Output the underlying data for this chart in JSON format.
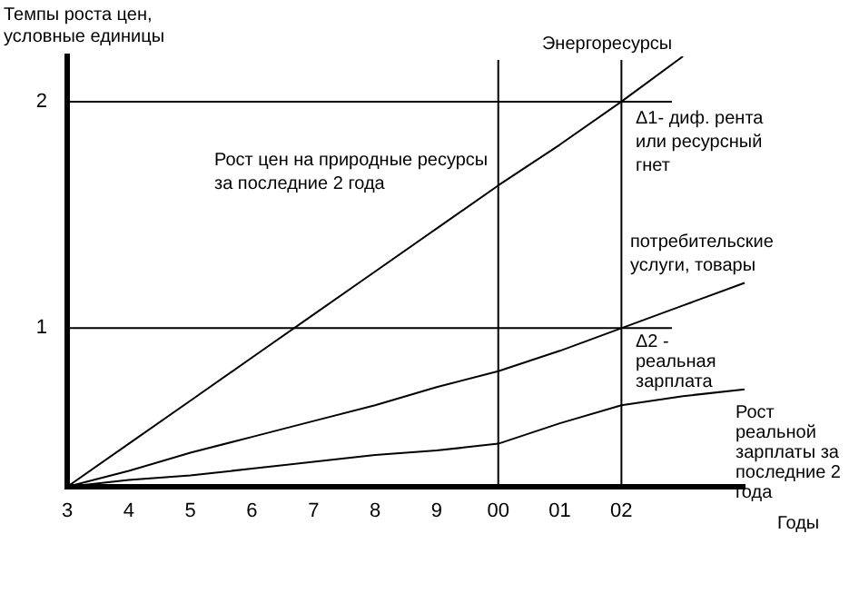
{
  "chart_data": {
    "type": "line",
    "ylabel": "Темпы роста цен, условные единицы",
    "xlabel": "Годы",
    "categories": [
      "3",
      "4",
      "5",
      "6",
      "7",
      "8",
      "9",
      "00",
      "01",
      "02",
      null,
      null
    ],
    "ylim": [
      0.3,
      2.2
    ],
    "yticks": [
      1,
      2
    ],
    "grid": false,
    "legend": false,
    "marker": "none",
    "line_style": "solid",
    "series": [
      {
        "name": "Энергоресурсы",
        "color": "#000000",
        "values": [
          0.3,
          0.49,
          0.68,
          0.87,
          1.06,
          1.25,
          1.44,
          1.63,
          1.81,
          2.0,
          2.2,
          null
        ]
      },
      {
        "name": "потребительские услуги, товары",
        "color": "#000000",
        "values": [
          0.3,
          0.37,
          0.45,
          0.52,
          0.59,
          0.66,
          0.74,
          0.81,
          0.9,
          1.0,
          1.1,
          1.2
        ]
      },
      {
        "color": "#000000",
        "values": [
          0.3,
          0.33,
          0.35,
          0.38,
          0.41,
          0.44,
          0.46,
          0.49,
          0.58,
          0.66,
          0.7,
          0.73
        ]
      }
    ],
    "ref_lines": [
      {
        "axis": "y",
        "value": 1,
        "label": null
      },
      {
        "axis": "y",
        "value": 2,
        "label": null
      },
      {
        "axis": "x",
        "value": "00",
        "label": null
      },
      {
        "axis": "x",
        "value": "02",
        "label": null
      }
    ],
    "annotations": [
      "Рост цен на природные ресурсы за последние 2 года",
      "Δ1- диф. рента или ресурсный гнет",
      "Δ2 - реальная зарплата",
      "Рост реальной зарплаты за последние 2 года"
    ]
  }
}
